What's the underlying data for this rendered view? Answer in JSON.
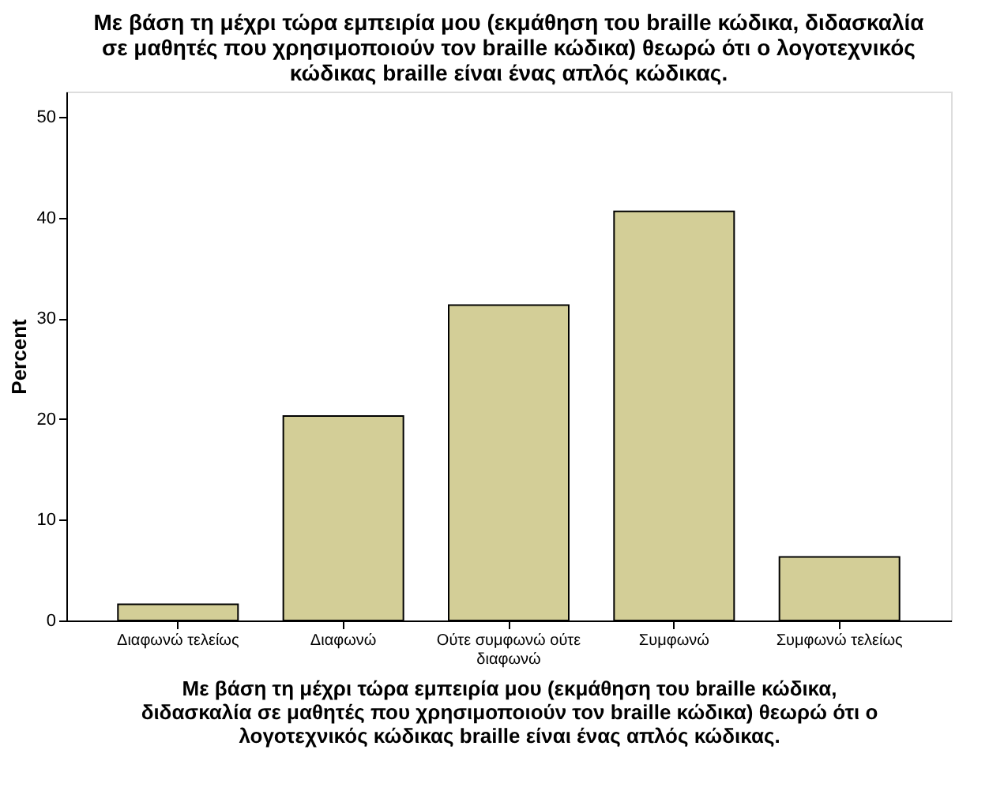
{
  "chart_data": {
    "type": "bar",
    "title": "Με βάση τη μέχρι τώρα εμπειρία μου (εκμάθηση του braille κώδικα, διδασκαλία\nσε μαθητές που χρησιμοποιούν τον braille κώδικα) θεωρώ ότι ο λογοτεχνικός\nκώδικας braille είναι ένας απλός κώδικας.",
    "xlabel": "Με βάση τη μέχρι τώρα εμπειρία μου (εκμάθηση του braille κώδικα,\nδιδασκαλία σε μαθητές που χρησιμοποιούν τον braille κώδικα) θεωρώ ότι ο\nλογοτεχνικός κώδικας braille είναι ένας απλός κώδικας.",
    "ylabel": "Percent",
    "categories": [
      "Διαφωνώ τελείως",
      "Διαφωνώ",
      "Ούτε συμφωνώ ούτε διαφωνώ",
      "Συμφωνώ",
      "Συμφωνώ τελείως"
    ],
    "values": [
      1.6,
      20.3,
      31.3,
      40.6,
      6.3
    ],
    "color": "#d3ce97",
    "ylim": [
      0,
      52.5
    ],
    "yticks": [
      0,
      10,
      20,
      30,
      40,
      50
    ],
    "grid": false
  }
}
